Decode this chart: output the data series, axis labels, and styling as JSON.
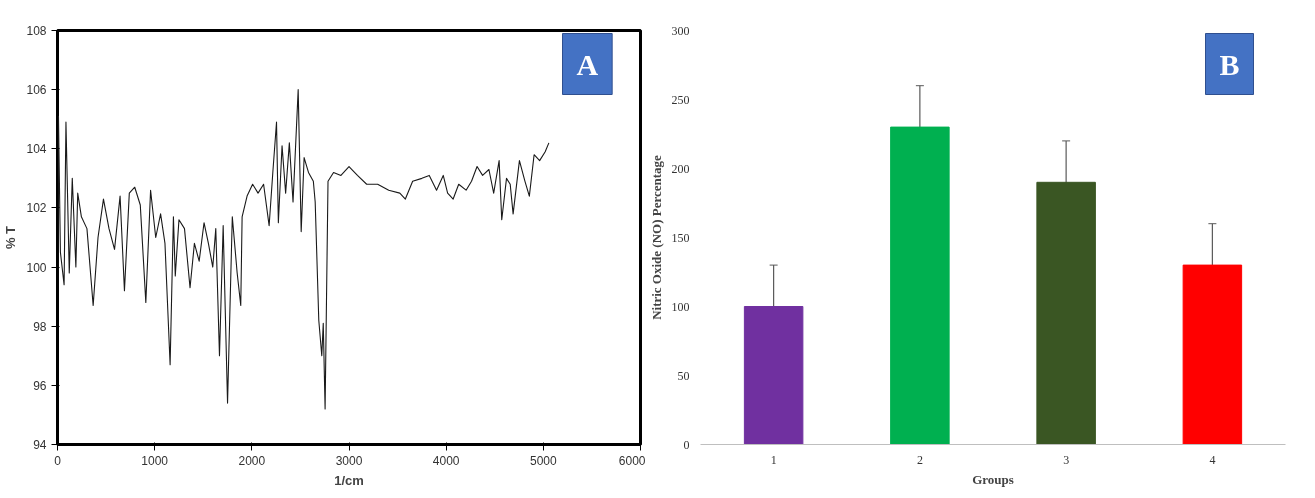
{
  "chart_data": [
    {
      "type": "line",
      "xlabel": "1/cm",
      "ylabel": "% T",
      "annotations": [
        "A"
      ],
      "xlim": [
        0,
        6000
      ],
      "ylim": [
        94,
        108
      ],
      "xticks": [
        0,
        1000,
        2000,
        3000,
        4000,
        5000,
        6000
      ],
      "yticks": [
        94,
        96,
        98,
        100,
        102,
        104,
        106,
        108
      ],
      "grid": false,
      "marker": "none",
      "line_style": "solid",
      "series": [
        {
          "color": "#1a1a1a",
          "x": [
            0,
            10,
            30,
            68,
            87,
            121,
            152,
            189,
            208,
            246,
            303,
            367,
            417,
            473,
            530,
            587,
            644,
            689,
            739,
            795,
            852,
            909,
            958,
            1011,
            1061,
            1106,
            1159,
            1193,
            1212,
            1250,
            1307,
            1364,
            1409,
            1458,
            1508,
            1553,
            1598,
            1629,
            1667,
            1705,
            1750,
            1799,
            1849,
            1886,
            1900,
            1951,
            2008,
            2064,
            2121,
            2178,
            2216,
            2254,
            2273,
            2311,
            2348,
            2386,
            2424,
            2477,
            2508,
            2538,
            2583,
            2633,
            2652,
            2689,
            2720,
            2735,
            2754,
            2784,
            2841,
            2917,
            3000,
            3087,
            3182,
            3295,
            3409,
            3523,
            3580,
            3655,
            3750,
            3826,
            3901,
            3970,
            4015,
            4072,
            4129,
            4205,
            4261,
            4318,
            4375,
            4440,
            4489,
            4545,
            4572,
            4621,
            4659,
            4689,
            4754,
            4811,
            4856,
            4905,
            4962,
            5019,
            5057
          ],
          "values": [
            98.3,
            105.1,
            100.5,
            99.4,
            104.9,
            99.8,
            103.0,
            100.0,
            102.5,
            101.7,
            101.3,
            98.7,
            101.0,
            102.3,
            101.3,
            100.6,
            102.4,
            99.2,
            102.5,
            102.7,
            102.1,
            98.8,
            102.6,
            101.0,
            101.8,
            100.8,
            96.7,
            101.7,
            99.7,
            101.6,
            101.3,
            99.3,
            100.8,
            100.2,
            101.5,
            100.8,
            100.0,
            101.3,
            97.0,
            101.4,
            95.4,
            101.7,
            99.8,
            98.7,
            101.7,
            102.4,
            102.8,
            102.5,
            102.8,
            101.4,
            103.2,
            104.9,
            101.5,
            104.1,
            102.5,
            104.2,
            102.2,
            106.0,
            101.2,
            103.7,
            103.2,
            102.9,
            102.2,
            98.2,
            97.0,
            98.1,
            95.2,
            102.9,
            103.2,
            103.1,
            103.4,
            103.1,
            102.8,
            102.8,
            102.6,
            102.5,
            102.3,
            102.9,
            103.0,
            103.1,
            102.6,
            103.1,
            102.5,
            102.3,
            102.8,
            102.6,
            102.9,
            103.4,
            103.1,
            103.3,
            102.5,
            103.6,
            101.6,
            103.0,
            102.8,
            101.8,
            103.6,
            102.9,
            102.4,
            103.8,
            103.6,
            103.9,
            104.2
          ]
        }
      ]
    },
    {
      "type": "bar",
      "xlabel": "Groups",
      "ylabel": "Nitric Oxide (NO) Percentage",
      "annotations": [
        "B"
      ],
      "categories": [
        "1",
        "2",
        "3",
        "4"
      ],
      "values": [
        100,
        230,
        190,
        130
      ],
      "errors": [
        30,
        30,
        30,
        30
      ],
      "colors": [
        "#7030a0",
        "#00b050",
        "#3a5623",
        "#ff0000"
      ],
      "ylim": [
        0,
        300
      ],
      "yticks": [
        0,
        50,
        100,
        150,
        200,
        250,
        300
      ],
      "grid": false
    }
  ]
}
